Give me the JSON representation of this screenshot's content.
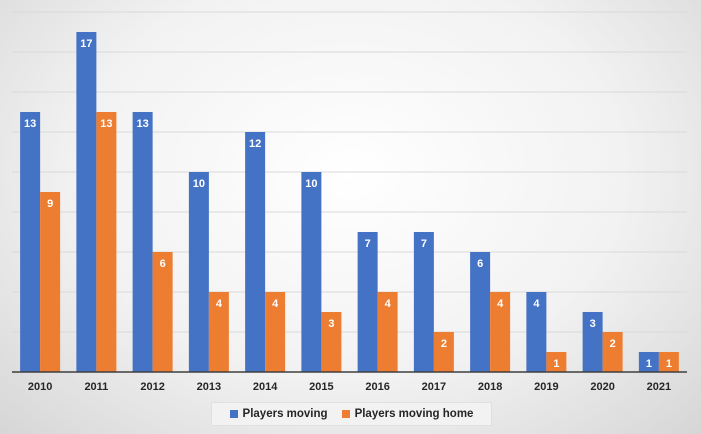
{
  "colors": {
    "players_moving": "#4472C4",
    "players_moving_home": "#ED7D31",
    "gridline": "#d9d9d9",
    "axis": "#3f3f3f"
  },
  "legend": {
    "moving_label": "Players moving",
    "home_label": "Players moving home"
  },
  "chart_data": {
    "type": "bar",
    "categories": [
      "2010",
      "2011",
      "2012",
      "2013",
      "2014",
      "2015",
      "2016",
      "2017",
      "2018",
      "2019",
      "2020",
      "2021"
    ],
    "series": [
      {
        "name": "Players moving",
        "values": [
          13,
          17,
          13,
          10,
          12,
          10,
          7,
          7,
          6,
          4,
          3,
          1
        ]
      },
      {
        "name": "Players moving home",
        "values": [
          9,
          13,
          6,
          4,
          4,
          3,
          4,
          2,
          4,
          1,
          2,
          1
        ]
      }
    ],
    "ylim": [
      0,
      18
    ],
    "grid": true,
    "legend_position": "bottom"
  }
}
